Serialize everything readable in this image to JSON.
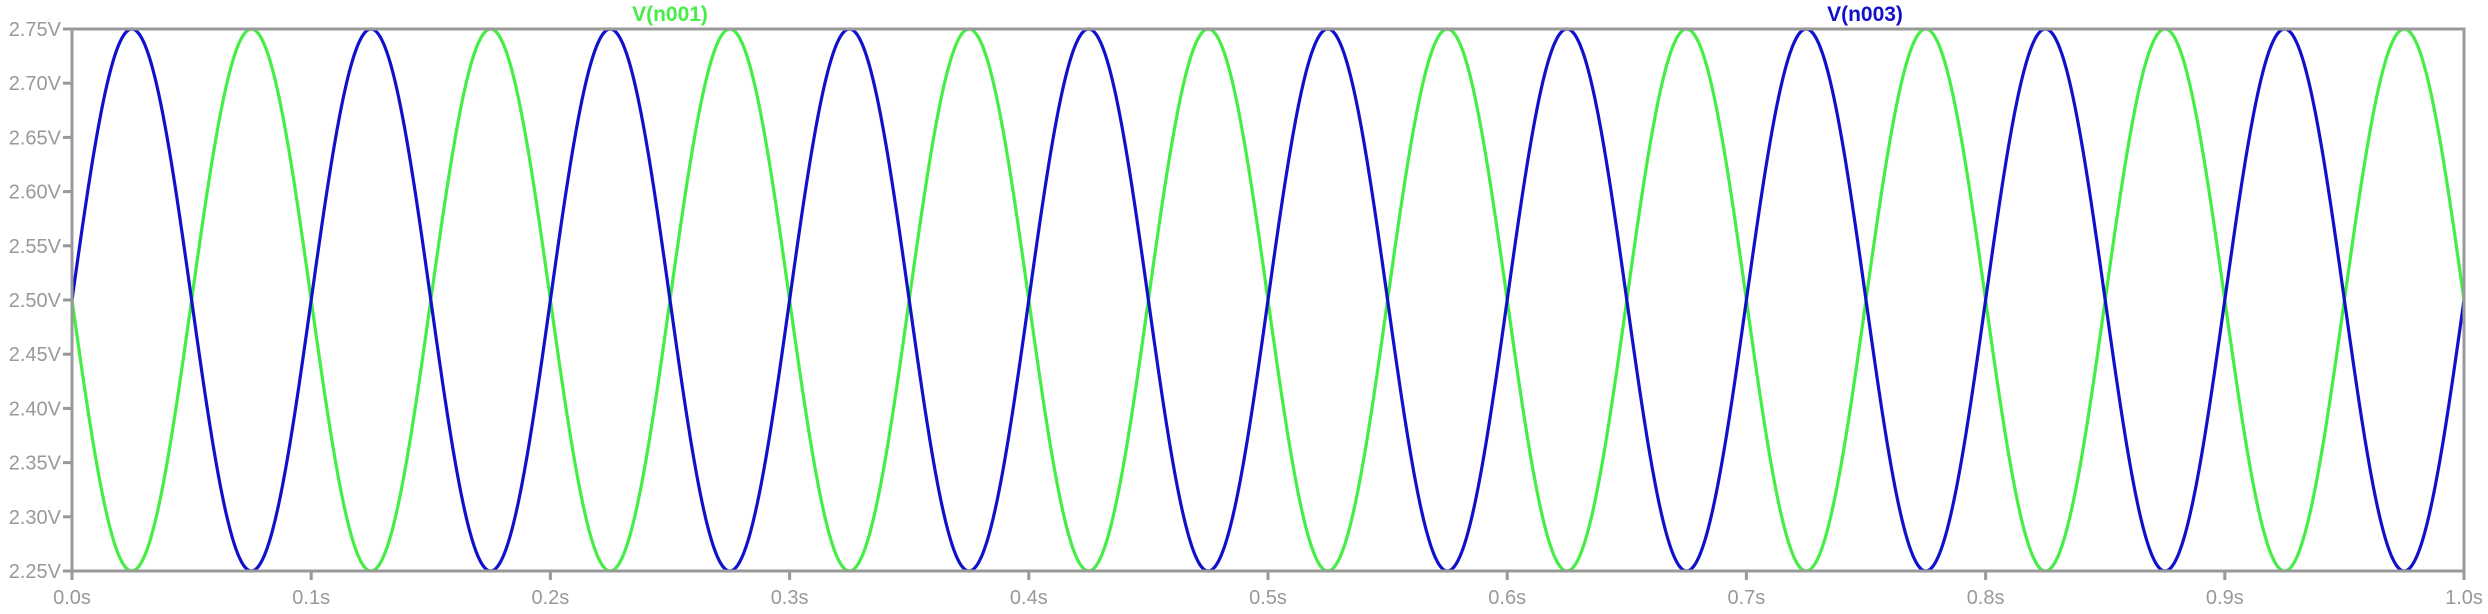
{
  "chart_data": {
    "type": "line",
    "title": "",
    "xlabel": "",
    "ylabel": "",
    "xlim": [
      0.0,
      1.0
    ],
    "ylim": [
      2.25,
      2.75
    ],
    "grid": false,
    "legend": "top",
    "x_ticks": [
      {
        "value": 0.0,
        "label": "0.0s"
      },
      {
        "value": 0.1,
        "label": "0.1s"
      },
      {
        "value": 0.2,
        "label": "0.2s"
      },
      {
        "value": 0.3,
        "label": "0.3s"
      },
      {
        "value": 0.4,
        "label": "0.4s"
      },
      {
        "value": 0.5,
        "label": "0.5s"
      },
      {
        "value": 0.6,
        "label": "0.6s"
      },
      {
        "value": 0.7,
        "label": "0.7s"
      },
      {
        "value": 0.8,
        "label": "0.8s"
      },
      {
        "value": 0.9,
        "label": "0.9s"
      },
      {
        "value": 1.0,
        "label": "1.0s"
      }
    ],
    "y_ticks": [
      {
        "value": 2.25,
        "label": "2.25V"
      },
      {
        "value": 2.3,
        "label": "2.30V"
      },
      {
        "value": 2.35,
        "label": "2.35V"
      },
      {
        "value": 2.4,
        "label": "2.40V"
      },
      {
        "value": 2.45,
        "label": "2.45V"
      },
      {
        "value": 2.5,
        "label": "2.50V"
      },
      {
        "value": 2.55,
        "label": "2.55V"
      },
      {
        "value": 2.6,
        "label": "2.60V"
      },
      {
        "value": 2.65,
        "label": "2.65V"
      },
      {
        "value": 2.7,
        "label": "2.70V"
      },
      {
        "value": 2.75,
        "label": "2.75V"
      }
    ],
    "series": [
      {
        "name": "V(n001)",
        "color": "#44ee44",
        "waveform": "sine",
        "offset": 2.5,
        "amplitude": 0.25,
        "frequency_hz": 10,
        "phase_deg": 180
      },
      {
        "name": "V(n003)",
        "color": "#1111cc",
        "waveform": "sine",
        "offset": 2.5,
        "amplitude": 0.25,
        "frequency_hz": 10,
        "phase_deg": 0
      }
    ],
    "axis_color": "#999999",
    "tick_label_color": "#999999"
  }
}
